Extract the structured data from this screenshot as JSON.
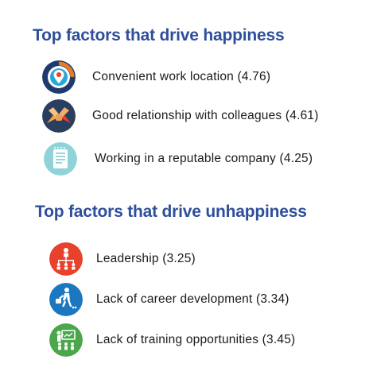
{
  "happiness": {
    "title": "Top factors that drive happiness",
    "items": [
      {
        "label": "Convenient work location (4.76)",
        "icon": "location-pin-icon"
      },
      {
        "label": "Good relationship with colleagues (4.61)",
        "icon": "joined-hands-icon"
      },
      {
        "label": "Working in a reputable company (4.25)",
        "icon": "document-certificate-icon"
      }
    ]
  },
  "unhappiness": {
    "title": "Top factors that drive unhappiness",
    "items": [
      {
        "label": "Leadership (3.25)",
        "icon": "org-chart-icon"
      },
      {
        "label": "Lack of career development (3.34)",
        "icon": "climbing-person-icon"
      },
      {
        "label": "Lack of training opportunities (3.45)",
        "icon": "presentation-board-icon"
      }
    ]
  },
  "colors": {
    "heading": "#2f4f9a",
    "location_icon_bg": "#1f3b6e",
    "hands_icon_bg": "#2a3f5f",
    "document_icon_bg": "#8fd3d8",
    "org_icon_bg": "#e8412c",
    "climb_icon_bg": "#1b78c0",
    "board_icon_bg": "#4aa74c"
  }
}
